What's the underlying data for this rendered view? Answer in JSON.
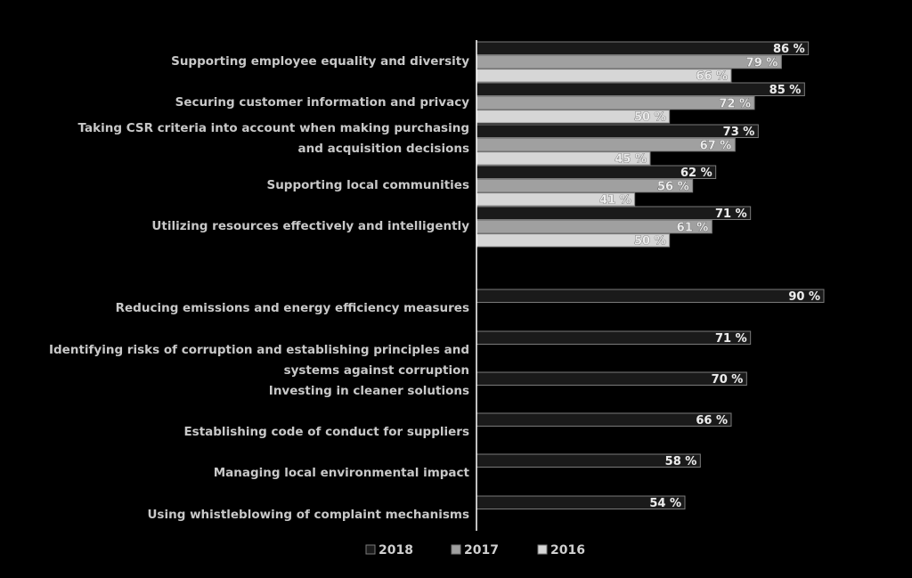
{
  "chart_data": {
    "type": "bar",
    "orientation": "horizontal",
    "xlim": [
      0,
      100
    ],
    "unit_suffix": " %",
    "legend_position": "bottom",
    "legend": [
      "2018",
      "2017",
      "2016"
    ],
    "colors": {
      "2018": "#1a1a1a",
      "2017": "#a0a0a0",
      "2016": "#d6d6d6",
      "outline": "#7a7a7a",
      "axis": "#ffffff",
      "text": "#c8c8c8"
    },
    "groups": [
      {
        "label": [
          "Supporting employee equality and diversity"
        ],
        "values": {
          "2018": 86,
          "2017": 79,
          "2016": 66
        }
      },
      {
        "label": [
          "Securing customer information and privacy"
        ],
        "values": {
          "2018": 85,
          "2017": 72,
          "2016": 50
        }
      },
      {
        "label": [
          "Taking CSR criteria into account when making purchasing",
          "and acquisition decisions"
        ],
        "values": {
          "2018": 73,
          "2017": 67,
          "2016": 45
        }
      },
      {
        "label": [
          "Supporting local communities"
        ],
        "values": {
          "2018": 62,
          "2017": 56,
          "2016": 41
        }
      },
      {
        "label": [
          "Utilizing resources effectively and intelligently"
        ],
        "values": {
          "2018": 71,
          "2017": 61,
          "2016": 50
        }
      },
      {
        "label": [
          "Reducing emissions and energy efficiency measures"
        ],
        "values": {
          "2018": 90
        }
      },
      {
        "label": [
          "Identifying risks of corruption and establishing principles and",
          "systems against corruption"
        ],
        "values": {
          "2018": 71
        }
      },
      {
        "label": [
          "Investing in cleaner solutions"
        ],
        "values": {
          "2018": 70
        }
      },
      {
        "label": [
          "Establishing code of conduct for suppliers"
        ],
        "values": {
          "2018": 66
        }
      },
      {
        "label": [
          "Managing local environmental impact"
        ],
        "values": {
          "2018": 58
        }
      },
      {
        "label": [
          "Using whistleblowing of complaint mechanisms"
        ],
        "values": {
          "2018": 54
        }
      }
    ]
  }
}
